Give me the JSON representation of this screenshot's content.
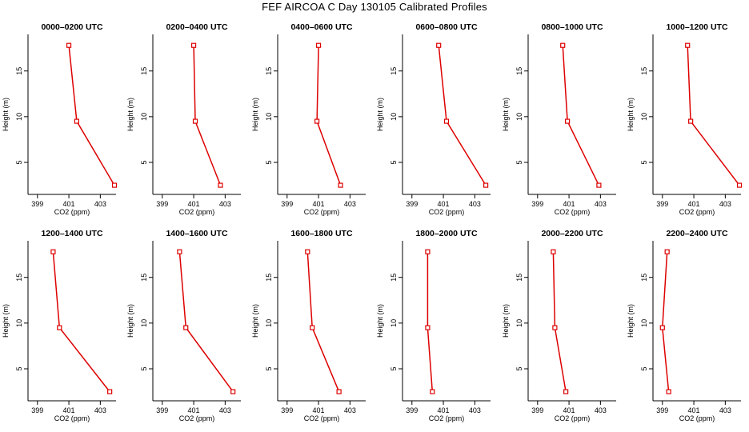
{
  "page_title": "FEF AIRCOA C  Day 130105  Calibrated Profiles",
  "chart_data": [
    {
      "type": "line",
      "title": "0000–0200 UTC",
      "xlabel": "CO2 (ppm)",
      "ylabel": "Height (m)",
      "xlim": [
        398.4,
        404
      ],
      "ylim": [
        1.5,
        19
      ],
      "xticks": [
        399,
        401,
        403
      ],
      "yticks": [
        5,
        10,
        15
      ],
      "line_color": "#dd0000",
      "series": [
        {
          "x": [
            403.9,
            401.5,
            401.0
          ],
          "y": [
            2.5,
            9.5,
            17.8
          ]
        }
      ]
    },
    {
      "type": "line",
      "title": "0200–0400 UTC",
      "xlabel": "CO2 (ppm)",
      "ylabel": "Height (m)",
      "xlim": [
        398.4,
        404
      ],
      "ylim": [
        1.5,
        19
      ],
      "xticks": [
        399,
        401,
        403
      ],
      "yticks": [
        5,
        10,
        15
      ],
      "line_color": "#dd0000",
      "series": [
        {
          "x": [
            402.7,
            401.1,
            401.0
          ],
          "y": [
            2.5,
            9.5,
            17.8
          ]
        }
      ]
    },
    {
      "type": "line",
      "title": "0400–0600 UTC",
      "xlabel": "CO2 (ppm)",
      "ylabel": "Height (m)",
      "xlim": [
        398.4,
        404
      ],
      "ylim": [
        1.5,
        19
      ],
      "xticks": [
        399,
        401,
        403
      ],
      "yticks": [
        5,
        10,
        15
      ],
      "line_color": "#dd0000",
      "series": [
        {
          "x": [
            402.4,
            400.9,
            401.0
          ],
          "y": [
            2.5,
            9.5,
            17.8
          ]
        }
      ]
    },
    {
      "type": "line",
      "title": "0600–0800 UTC",
      "xlabel": "CO2 (ppm)",
      "ylabel": "Height (m)",
      "xlim": [
        398.4,
        404
      ],
      "ylim": [
        1.5,
        19
      ],
      "xticks": [
        399,
        401,
        403
      ],
      "yticks": [
        5,
        10,
        15
      ],
      "line_color": "#dd0000",
      "series": [
        {
          "x": [
            403.7,
            401.2,
            400.7
          ],
          "y": [
            2.5,
            9.5,
            17.8
          ]
        }
      ]
    },
    {
      "type": "line",
      "title": "0800–1000 UTC",
      "xlabel": "CO2 (ppm)",
      "ylabel": "Height (m)",
      "xlim": [
        398.4,
        404
      ],
      "ylim": [
        1.5,
        19
      ],
      "xticks": [
        399,
        401,
        403
      ],
      "yticks": [
        5,
        10,
        15
      ],
      "line_color": "#dd0000",
      "series": [
        {
          "x": [
            402.9,
            400.9,
            400.6
          ],
          "y": [
            2.5,
            9.5,
            17.8
          ]
        }
      ]
    },
    {
      "type": "line",
      "title": "1000–1200 UTC",
      "xlabel": "CO2 (ppm)",
      "ylabel": "Height (m)",
      "xlim": [
        398.4,
        404
      ],
      "ylim": [
        1.5,
        19
      ],
      "xticks": [
        399,
        401,
        403
      ],
      "yticks": [
        5,
        10,
        15
      ],
      "line_color": "#dd0000",
      "series": [
        {
          "x": [
            403.9,
            400.8,
            400.6
          ],
          "y": [
            2.5,
            9.5,
            17.8
          ]
        }
      ]
    },
    {
      "type": "line",
      "title": "1200–1400 UTC",
      "xlabel": "CO2 (ppm)",
      "ylabel": "Height (m)",
      "xlim": [
        398.4,
        404
      ],
      "ylim": [
        1.5,
        19
      ],
      "xticks": [
        399,
        401,
        403
      ],
      "yticks": [
        5,
        10,
        15
      ],
      "line_color": "#dd0000",
      "series": [
        {
          "x": [
            403.6,
            400.4,
            400.0
          ],
          "y": [
            2.5,
            9.5,
            17.8
          ]
        }
      ]
    },
    {
      "type": "line",
      "title": "1400–1600 UTC",
      "xlabel": "CO2 (ppm)",
      "ylabel": "Height (m)",
      "xlim": [
        398.4,
        404
      ],
      "ylim": [
        1.5,
        19
      ],
      "xticks": [
        399,
        401,
        403
      ],
      "yticks": [
        5,
        10,
        15
      ],
      "line_color": "#dd0000",
      "series": [
        {
          "x": [
            403.5,
            400.5,
            400.1
          ],
          "y": [
            2.5,
            9.5,
            17.8
          ]
        }
      ]
    },
    {
      "type": "line",
      "title": "1600–1800 UTC",
      "xlabel": "CO2 (ppm)",
      "ylabel": "Height (m)",
      "xlim": [
        398.4,
        404
      ],
      "ylim": [
        1.5,
        19
      ],
      "xticks": [
        399,
        401,
        403
      ],
      "yticks": [
        5,
        10,
        15
      ],
      "line_color": "#dd0000",
      "series": [
        {
          "x": [
            402.3,
            400.6,
            400.3
          ],
          "y": [
            2.5,
            9.5,
            17.8
          ]
        }
      ]
    },
    {
      "type": "line",
      "title": "1800–2000 UTC",
      "xlabel": "CO2 (ppm)",
      "ylabel": "Height (m)",
      "xlim": [
        398.4,
        404
      ],
      "ylim": [
        1.5,
        19
      ],
      "xticks": [
        399,
        401,
        403
      ],
      "yticks": [
        5,
        10,
        15
      ],
      "line_color": "#dd0000",
      "series": [
        {
          "x": [
            400.3,
            400.0,
            400.0
          ],
          "y": [
            2.5,
            9.5,
            17.8
          ]
        }
      ]
    },
    {
      "type": "line",
      "title": "2000–2200 UTC",
      "xlabel": "CO2 (ppm)",
      "ylabel": "Height (m)",
      "xlim": [
        398.4,
        404
      ],
      "ylim": [
        1.5,
        19
      ],
      "xticks": [
        399,
        401,
        403
      ],
      "yticks": [
        5,
        10,
        15
      ],
      "line_color": "#dd0000",
      "series": [
        {
          "x": [
            400.8,
            400.1,
            400.0
          ],
          "y": [
            2.5,
            9.5,
            17.8
          ]
        }
      ]
    },
    {
      "type": "line",
      "title": "2200–2400 UTC",
      "xlabel": "CO2 (ppm)",
      "ylabel": "Height (m)",
      "xlim": [
        398.4,
        404
      ],
      "ylim": [
        1.5,
        19
      ],
      "xticks": [
        399,
        401,
        403
      ],
      "yticks": [
        5,
        10,
        15
      ],
      "line_color": "#dd0000",
      "series": [
        {
          "x": [
            399.4,
            399.0,
            399.3
          ],
          "y": [
            2.5,
            9.5,
            17.8
          ]
        }
      ]
    }
  ]
}
